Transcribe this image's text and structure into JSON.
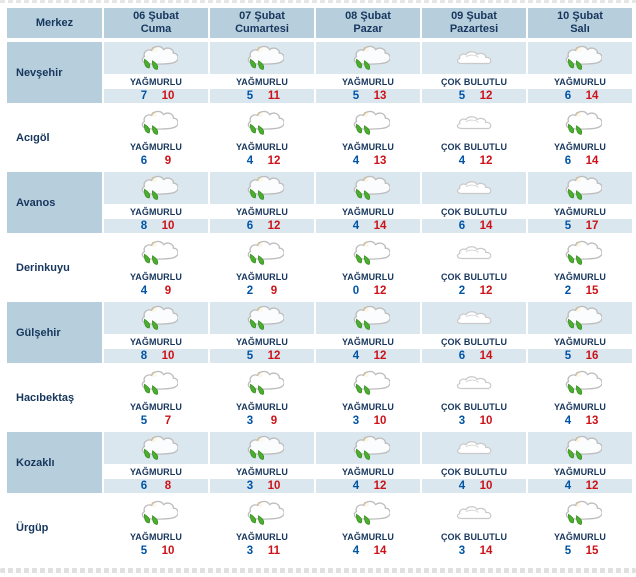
{
  "colors": {
    "header_bg": "#b7cfdd",
    "band_bg": "#dbe7ee",
    "navy": "#17365d",
    "min_blue": "#0054a6",
    "max_red": "#cc1218"
  },
  "table": {
    "corner_header": "Merkez",
    "days": [
      {
        "date": "06 Şubat",
        "weekday": "Cuma"
      },
      {
        "date": "07 Şubat",
        "weekday": "Cumartesi"
      },
      {
        "date": "08 Şubat",
        "weekday": "Pazar"
      },
      {
        "date": "09 Şubat",
        "weekday": "Pazartesi"
      },
      {
        "date": "10 Şubat",
        "weekday": "Salı"
      }
    ],
    "rows": [
      {
        "city": "Nevşehir",
        "cells": [
          {
            "icon": "rainy-icon",
            "condition": "YAĞMURLU",
            "min": 7,
            "max": 10
          },
          {
            "icon": "rainy-icon",
            "condition": "YAĞMURLU",
            "min": 5,
            "max": 11
          },
          {
            "icon": "rainy-icon",
            "condition": "YAĞMURLU",
            "min": 5,
            "max": 13
          },
          {
            "icon": "cloudy-icon",
            "condition": "ÇOK BULUTLU",
            "min": 5,
            "max": 12
          },
          {
            "icon": "rainy-icon",
            "condition": "YAĞMURLU",
            "min": 6,
            "max": 14
          }
        ]
      },
      {
        "city": "Acıgöl",
        "cells": [
          {
            "icon": "rainy-icon",
            "condition": "YAĞMURLU",
            "min": 6,
            "max": 9
          },
          {
            "icon": "rainy-icon",
            "condition": "YAĞMURLU",
            "min": 4,
            "max": 12
          },
          {
            "icon": "rainy-icon",
            "condition": "YAĞMURLU",
            "min": 4,
            "max": 13
          },
          {
            "icon": "cloudy-icon",
            "condition": "ÇOK BULUTLU",
            "min": 4,
            "max": 12
          },
          {
            "icon": "rainy-icon",
            "condition": "YAĞMURLU",
            "min": 6,
            "max": 14
          }
        ]
      },
      {
        "city": "Avanos",
        "cells": [
          {
            "icon": "rainy-icon",
            "condition": "YAĞMURLU",
            "min": 8,
            "max": 10
          },
          {
            "icon": "rainy-icon",
            "condition": "YAĞMURLU",
            "min": 6,
            "max": 12
          },
          {
            "icon": "rainy-icon",
            "condition": "YAĞMURLU",
            "min": 4,
            "max": 14
          },
          {
            "icon": "cloudy-icon",
            "condition": "ÇOK BULUTLU",
            "min": 6,
            "max": 14
          },
          {
            "icon": "rainy-icon",
            "condition": "YAĞMURLU",
            "min": 5,
            "max": 17
          }
        ]
      },
      {
        "city": "Derinkuyu",
        "cells": [
          {
            "icon": "rainy-icon",
            "condition": "YAĞMURLU",
            "min": 4,
            "max": 9
          },
          {
            "icon": "rainy-icon",
            "condition": "YAĞMURLU",
            "min": 2,
            "max": 9
          },
          {
            "icon": "rainy-icon",
            "condition": "YAĞMURLU",
            "min": 0,
            "max": 12
          },
          {
            "icon": "cloudy-icon",
            "condition": "ÇOK BULUTLU",
            "min": 2,
            "max": 12
          },
          {
            "icon": "rainy-icon",
            "condition": "YAĞMURLU",
            "min": 2,
            "max": 15
          }
        ]
      },
      {
        "city": "Gülşehir",
        "cells": [
          {
            "icon": "rainy-icon",
            "condition": "YAĞMURLU",
            "min": 8,
            "max": 10
          },
          {
            "icon": "rainy-icon",
            "condition": "YAĞMURLU",
            "min": 5,
            "max": 12
          },
          {
            "icon": "rainy-icon",
            "condition": "YAĞMURLU",
            "min": 4,
            "max": 12
          },
          {
            "icon": "cloudy-icon",
            "condition": "ÇOK BULUTLU",
            "min": 6,
            "max": 14
          },
          {
            "icon": "rainy-icon",
            "condition": "YAĞMURLU",
            "min": 5,
            "max": 16
          }
        ]
      },
      {
        "city": "Hacıbektaş",
        "cells": [
          {
            "icon": "rainy-icon",
            "condition": "YAĞMURLU",
            "min": 5,
            "max": 7
          },
          {
            "icon": "rainy-icon",
            "condition": "YAĞMURLU",
            "min": 3,
            "max": 9
          },
          {
            "icon": "rainy-icon",
            "condition": "YAĞMURLU",
            "min": 3,
            "max": 10
          },
          {
            "icon": "cloudy-icon",
            "condition": "ÇOK BULUTLU",
            "min": 3,
            "max": 10
          },
          {
            "icon": "rainy-icon",
            "condition": "YAĞMURLU",
            "min": 4,
            "max": 13
          }
        ]
      },
      {
        "city": "Kozaklı",
        "cells": [
          {
            "icon": "rainy-icon",
            "condition": "YAĞMURLU",
            "min": 6,
            "max": 8
          },
          {
            "icon": "rainy-icon",
            "condition": "YAĞMURLU",
            "min": 3,
            "max": 10
          },
          {
            "icon": "rainy-icon",
            "condition": "YAĞMURLU",
            "min": 4,
            "max": 12
          },
          {
            "icon": "cloudy-icon",
            "condition": "ÇOK BULUTLU",
            "min": 4,
            "max": 10
          },
          {
            "icon": "rainy-icon",
            "condition": "YAĞMURLU",
            "min": 4,
            "max": 12
          }
        ]
      },
      {
        "city": "Ürgüp",
        "cells": [
          {
            "icon": "rainy-icon",
            "condition": "YAĞMURLU",
            "min": 5,
            "max": 10
          },
          {
            "icon": "rainy-icon",
            "condition": "YAĞMURLU",
            "min": 3,
            "max": 11
          },
          {
            "icon": "rainy-icon",
            "condition": "YAĞMURLU",
            "min": 4,
            "max": 14
          },
          {
            "icon": "cloudy-icon",
            "condition": "ÇOK BULUTLU",
            "min": 3,
            "max": 14
          },
          {
            "icon": "rainy-icon",
            "condition": "YAĞMURLU",
            "min": 5,
            "max": 15
          }
        ]
      }
    ]
  }
}
